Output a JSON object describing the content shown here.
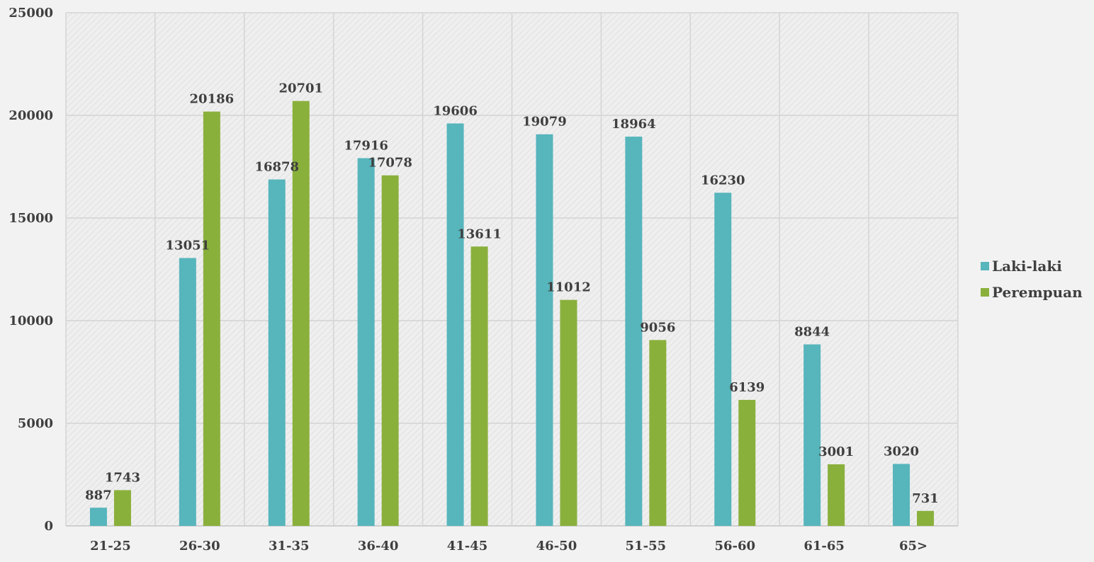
{
  "chart_data": {
    "type": "bar",
    "title": "",
    "xlabel": "",
    "ylabel": "",
    "categories": [
      "21-25",
      "26-30",
      "31-35",
      "36-40",
      "41-45",
      "46-50",
      "51-55",
      "56-60",
      "61-65",
      "65>"
    ],
    "series": [
      {
        "name": "Laki-laki",
        "color": "#57b5bc",
        "values": [
          887,
          13051,
          16878,
          17916,
          19606,
          19079,
          18964,
          16230,
          8844,
          3020
        ]
      },
      {
        "name": "Perempuan",
        "color": "#8ab03c",
        "values": [
          1743,
          20186,
          20701,
          17078,
          13611,
          11012,
          9056,
          6139,
          3001,
          731
        ]
      }
    ],
    "ylim": [
      0,
      25000
    ],
    "yticks": [
      0,
      5000,
      10000,
      15000,
      20000,
      25000
    ],
    "grid": true,
    "legend_position": "right"
  }
}
